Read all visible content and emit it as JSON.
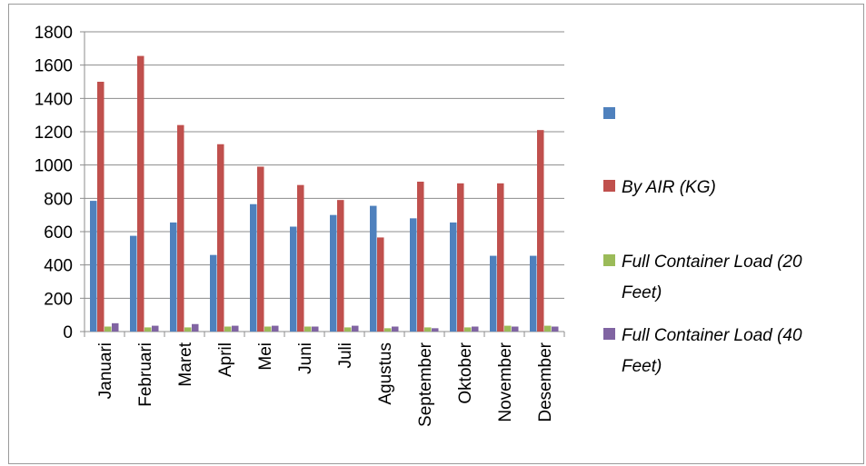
{
  "chart_data": {
    "type": "bar",
    "categories": [
      "Januari",
      "Februari",
      "Maret",
      "April",
      "Mei",
      "Juni",
      "Juli",
      "Agustus",
      "September",
      "Oktober",
      "November",
      "Desember"
    ],
    "series": [
      {
        "name": "",
        "color": "#4f81bd",
        "values": [
          785,
          575,
          655,
          460,
          765,
          630,
          700,
          755,
          680,
          655,
          455,
          455
        ]
      },
      {
        "name": "By AIR (KG)",
        "color": "#c0504d",
        "values": [
          1500,
          1655,
          1240,
          1125,
          990,
          880,
          790,
          565,
          900,
          890,
          890,
          1210
        ]
      },
      {
        "name": "Full Container Load  (20 Feet)",
        "color": "#9bbb59",
        "values": [
          30,
          25,
          25,
          30,
          30,
          30,
          25,
          20,
          25,
          25,
          35,
          35
        ]
      },
      {
        "name": "Full Container Load (40 Feet)",
        "color": "#8064a2",
        "values": [
          50,
          35,
          45,
          35,
          35,
          30,
          35,
          30,
          20,
          30,
          30,
          30
        ]
      }
    ],
    "y_ticks": [
      "0",
      "200",
      "400",
      "600",
      "800",
      "1000",
      "1200",
      "1400",
      "1600",
      "1800"
    ],
    "ylim": [
      0,
      1800
    ],
    "grid": true,
    "legend_position": "right",
    "title": "",
    "xlabel": "",
    "ylabel": ""
  }
}
